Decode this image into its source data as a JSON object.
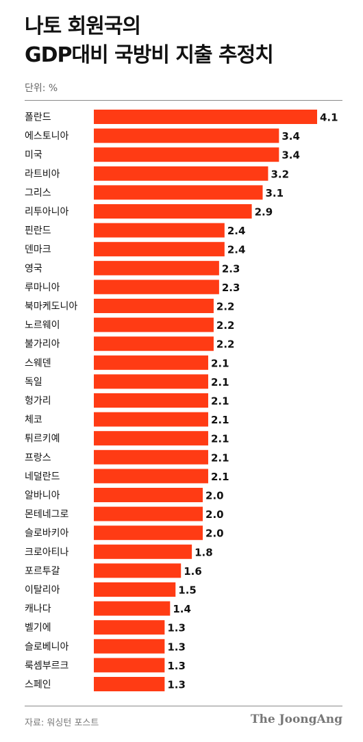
{
  "title_line1": "나토 회원국의",
  "title_line2": "GDP대비 국방비 지출 추정치",
  "unit": "단위: %",
  "source": "자료: 워싱턴 포스트",
  "logo": "The JoongAng",
  "colors": {
    "bar": "#ff3b14",
    "rule": "#888888"
  },
  "chart_data": {
    "type": "bar",
    "orientation": "horizontal",
    "categories": [
      "폴란드",
      "에스토니아",
      "미국",
      "라트비아",
      "그리스",
      "리투아니아",
      "핀란드",
      "덴마크",
      "영국",
      "루마니아",
      "북마케도니아",
      "노르웨이",
      "불가리아",
      "스웨덴",
      "독일",
      "헝가리",
      "체코",
      "튀르키예",
      "프랑스",
      "네덜란드",
      "알바니아",
      "몬테네그로",
      "슬로바키아",
      "크로아티나",
      "포르투갈",
      "이탈리아",
      "캐나다",
      "벨기에",
      "슬로베니아",
      "룩셈부르크",
      "스페인"
    ],
    "values": [
      4.1,
      3.4,
      3.4,
      3.2,
      3.1,
      2.9,
      2.4,
      2.4,
      2.3,
      2.3,
      2.2,
      2.2,
      2.2,
      2.1,
      2.1,
      2.1,
      2.1,
      2.1,
      2.1,
      2.1,
      2.0,
      2.0,
      2.0,
      1.8,
      1.6,
      1.5,
      1.4,
      1.3,
      1.3,
      1.3,
      1.3
    ],
    "value_labels": [
      "4.1",
      "3.4",
      "3.4",
      "3.2",
      "3.1",
      "2.9",
      "2.4",
      "2.4",
      "2.3",
      "2.3",
      "2.2",
      "2.2",
      "2.2",
      "2.1",
      "2.1",
      "2.1",
      "2.1",
      "2.1",
      "2.1",
      "2.1",
      "2.0",
      "2.0",
      "2.0",
      "1.8",
      "1.6",
      "1.5",
      "1.4",
      "1.3",
      "1.3",
      "1.3",
      "1.3"
    ],
    "xlim": [
      0,
      4.1
    ],
    "grid": false,
    "legend": "none"
  }
}
